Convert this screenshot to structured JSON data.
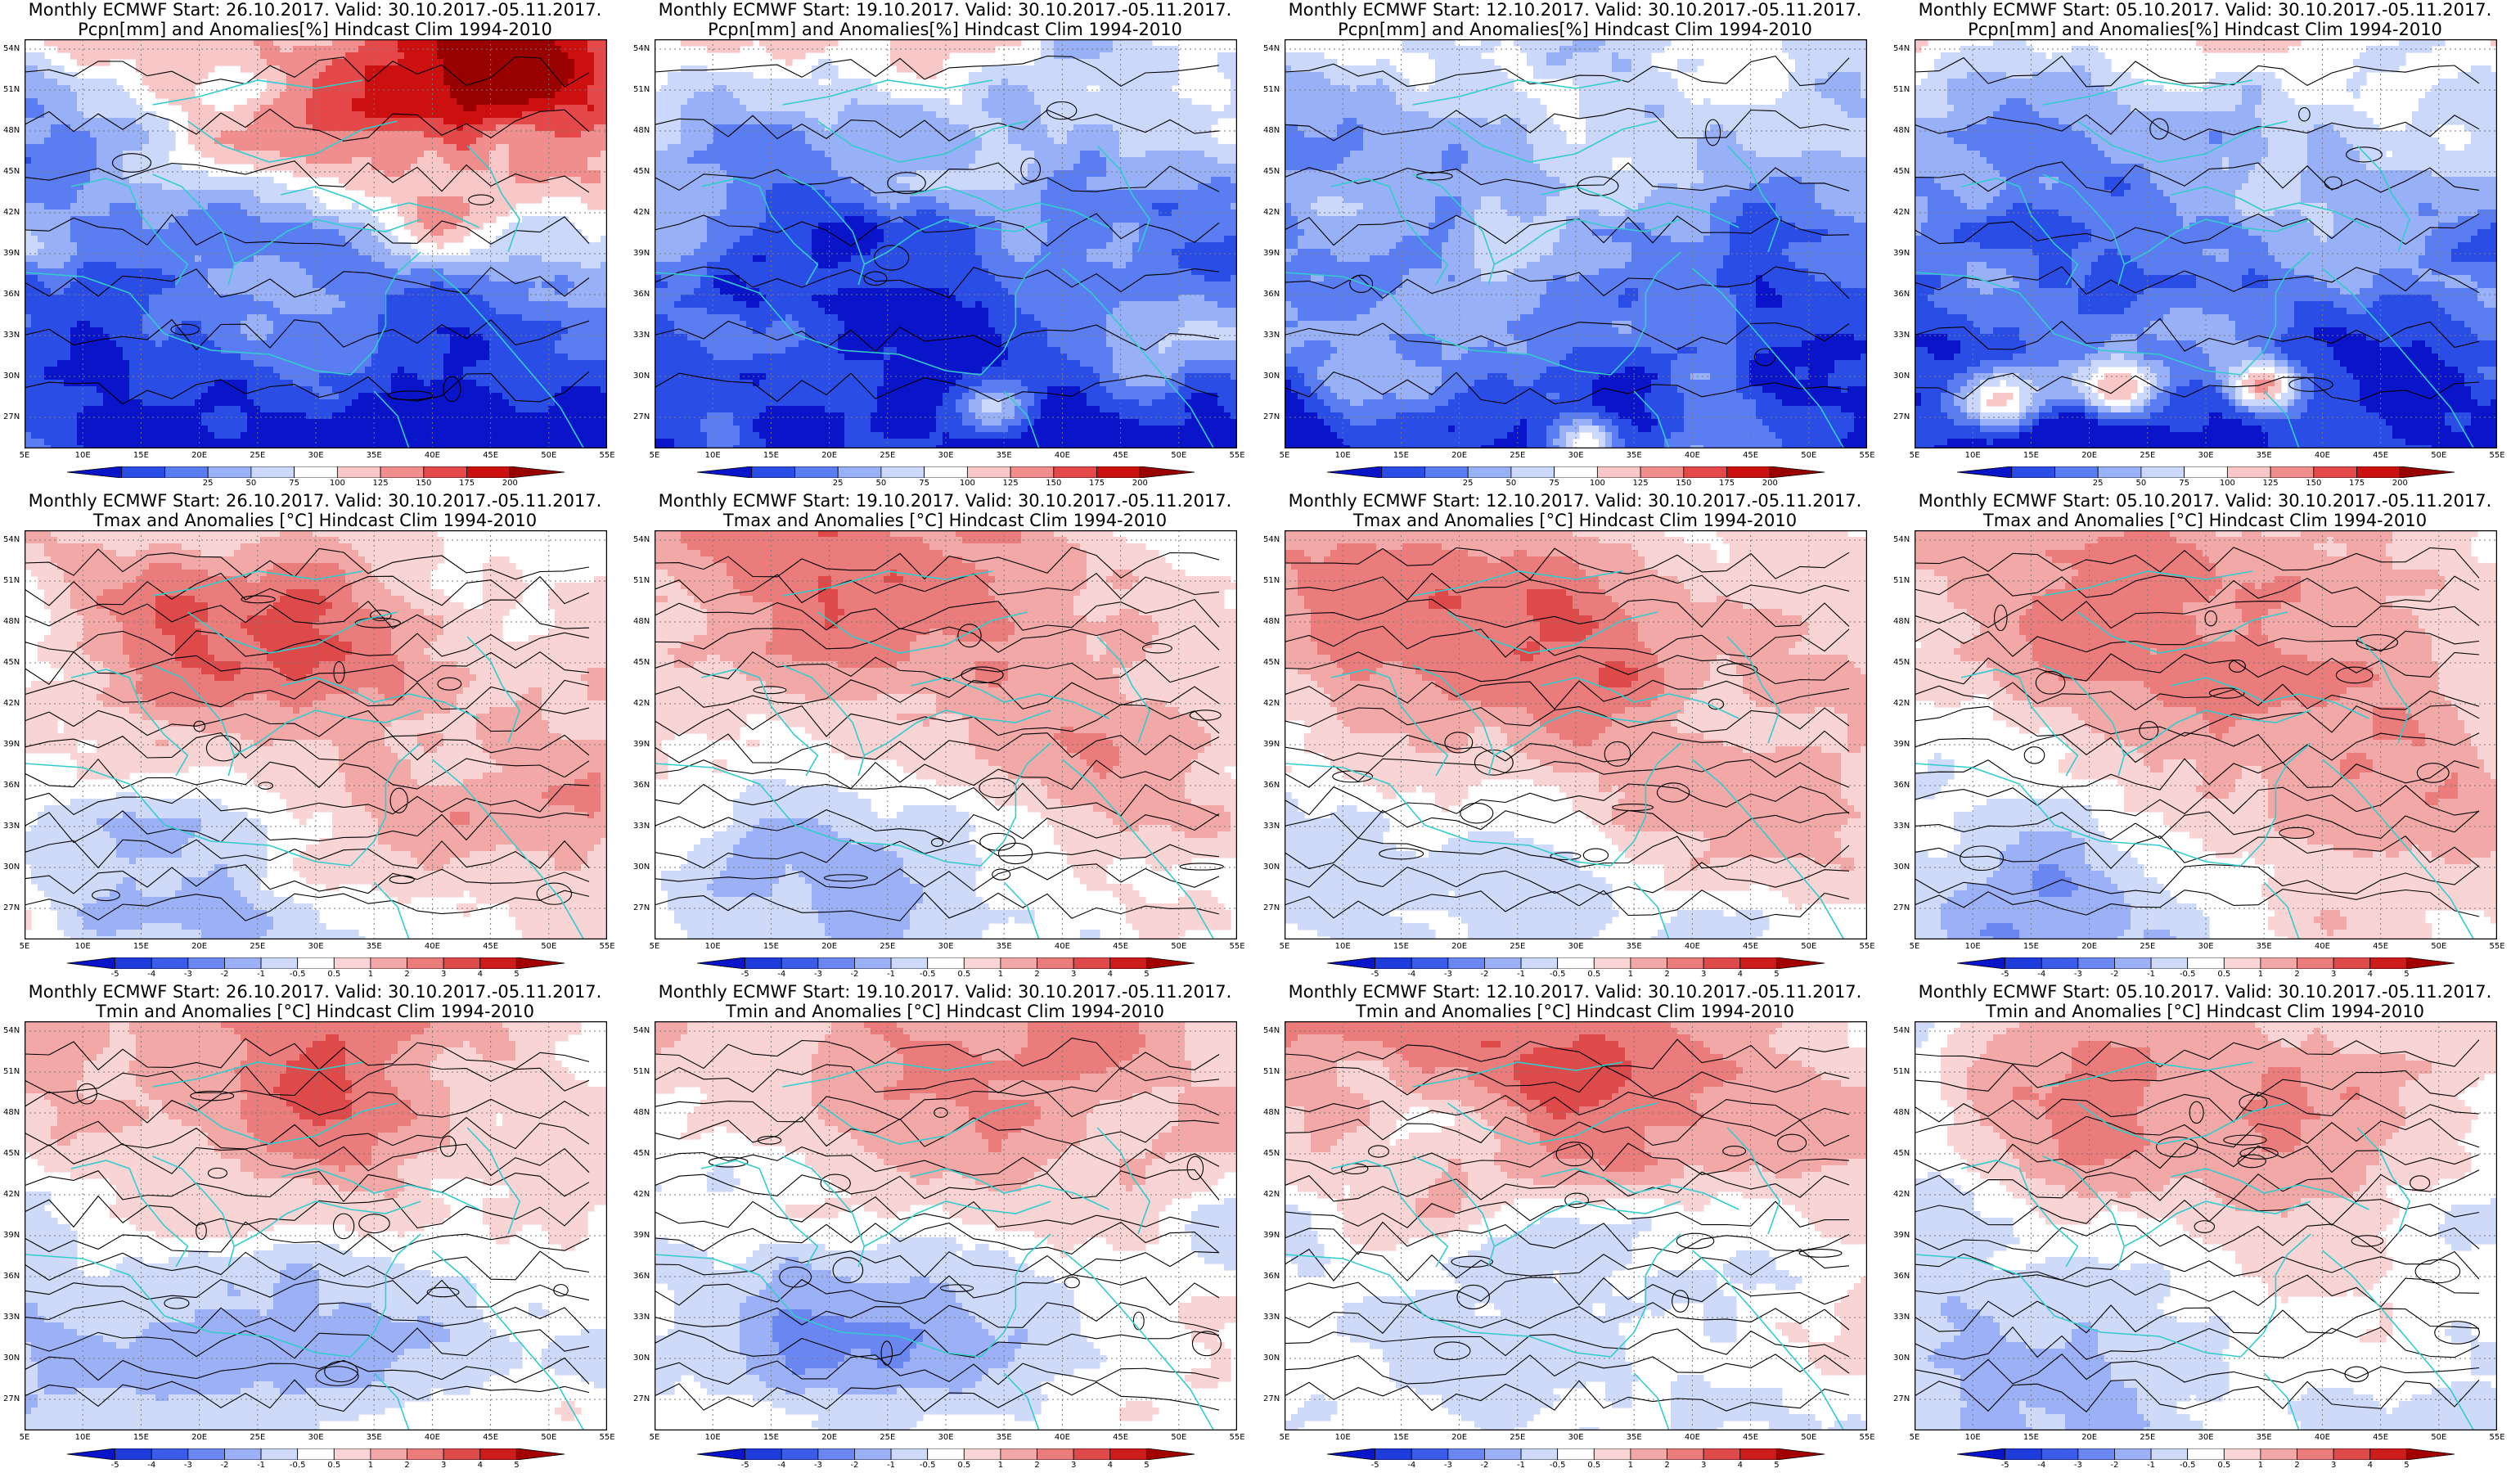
{
  "panels": [
    {
      "title1": "Monthly ECMWF Start: 26.10.2017. Valid: 30.10.2017.-05.11.2017.",
      "title2": "Pcpn[mm] and Anomalies[%] Hindcast Clim 1994-2010",
      "variable": "pcpn"
    },
    {
      "title1": "Monthly ECMWF Start: 19.10.2017. Valid: 30.10.2017.-05.11.2017.",
      "title2": "Pcpn[mm] and Anomalies[%] Hindcast Clim 1994-2010",
      "variable": "pcpn"
    },
    {
      "title1": "Monthly ECMWF Start: 12.10.2017. Valid: 30.10.2017.-05.11.2017.",
      "title2": "Pcpn[mm] and Anomalies[%] Hindcast Clim 1994-2010",
      "variable": "pcpn"
    },
    {
      "title1": "Monthly ECMWF Start: 05.10.2017. Valid: 30.10.2017.-05.11.2017.",
      "title2": "Pcpn[mm] and Anomalies[%] Hindcast Clim 1994-2010",
      "variable": "pcpn"
    },
    {
      "title1": "Monthly ECMWF Start: 26.10.2017. Valid: 30.10.2017.-05.11.2017.",
      "title2": "Tmax and Anomalies [°C] Hindcast Clim 1994-2010",
      "variable": "tmax"
    },
    {
      "title1": "Monthly ECMWF Start: 19.10.2017. Valid: 30.10.2017.-05.11.2017.",
      "title2": "Tmax and Anomalies [°C] Hindcast Clim 1994-2010",
      "variable": "tmax"
    },
    {
      "title1": "Monthly ECMWF Start: 12.10.2017. Valid: 30.10.2017.-05.11.2017.",
      "title2": "Tmax and Anomalies [°C] Hindcast Clim 1994-2010",
      "variable": "tmax"
    },
    {
      "title1": "Monthly ECMWF Start: 05.10.2017. Valid: 30.10.2017.-05.11.2017.",
      "title2": "Tmax and Anomalies [°C] Hindcast Clim 1994-2010",
      "variable": "tmax"
    },
    {
      "title1": "Monthly ECMWF Start: 26.10.2017. Valid: 30.10.2017.-05.11.2017.",
      "title2": "Tmin and Anomalies [°C] Hindcast Clim 1994-2010",
      "variable": "tmin"
    },
    {
      "title1": "Monthly ECMWF Start: 19.10.2017. Valid: 30.10.2017.-05.11.2017.",
      "title2": "Tmin and Anomalies [°C] Hindcast Clim 1994-2010",
      "variable": "tmin"
    },
    {
      "title1": "Monthly ECMWF Start: 12.10.2017. Valid: 30.10.2017.-05.11.2017.",
      "title2": "Tmin and Anomalies [°C] Hindcast Clim 1994-2010",
      "variable": "tmin"
    },
    {
      "title1": "Monthly ECMWF Start: 05.10.2017. Valid: 30.10.2017.-05.11.2017.",
      "title2": "Tmin and Anomalies [°C] Hindcast Clim 1994-2010",
      "variable": "tmin"
    }
  ],
  "lat_labels": [
    "54N",
    "51N",
    "48N",
    "45N",
    "42N",
    "39N",
    "36N",
    "33N",
    "30N",
    "27N"
  ],
  "lon_labels": [
    "5E",
    "10E",
    "15E",
    "20E",
    "25E",
    "30E",
    "35E",
    "40E",
    "45E",
    "50E",
    "55E"
  ],
  "colorbars": {
    "pcpn": {
      "labels": [
        "25",
        "50",
        "75",
        "100",
        "125",
        "150",
        "175",
        "200"
      ],
      "colors": [
        "#0a14c8",
        "#2a4de6",
        "#5a7df2",
        "#98b0f5",
        "#ccd8f9",
        "#ffffff",
        "#f8c8c8",
        "#f08e8e",
        "#e54848",
        "#cc1010",
        "#990000"
      ]
    },
    "temp": {
      "labels": [
        "-5",
        "-4",
        "-3",
        "-2",
        "-1",
        "-0.5",
        "0.5",
        "1",
        "2",
        "3",
        "4",
        "5"
      ],
      "colors": [
        "#0a14c8",
        "#1e3cdc",
        "#3a5ce8",
        "#6a86f0",
        "#9cb0f5",
        "#cfdaf9",
        "#ffffff",
        "#f9d4d4",
        "#f3a8a8",
        "#ea7c7c",
        "#de4a4a",
        "#cc1c1c",
        "#a30000"
      ]
    }
  },
  "colors": {
    "coastline": "#33cccc",
    "contour": "#000000",
    "frame": "#000000"
  }
}
